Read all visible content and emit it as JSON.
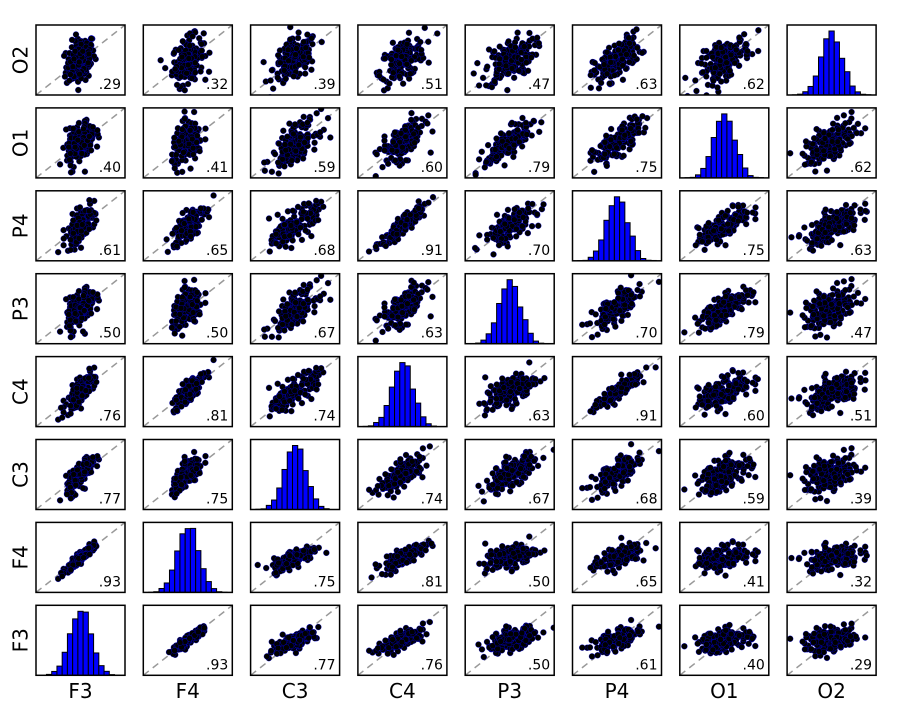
{
  "chart_data": {
    "type": "scatter",
    "subtype": "scatter-matrix",
    "variables": [
      "F3",
      "F4",
      "C3",
      "C4",
      "P3",
      "P4",
      "O1",
      "O2"
    ],
    "row_order_top_to_bottom": [
      "O2",
      "O1",
      "P4",
      "P3",
      "C4",
      "C3",
      "F4",
      "F3"
    ],
    "column_order_left_to_right": [
      "F3",
      "F4",
      "C3",
      "C4",
      "P3",
      "P4",
      "O1",
      "O2"
    ],
    "correlation_labels": [
      [
        null,
        ".93",
        ".77",
        ".76",
        ".50",
        ".61",
        ".40",
        ".29"
      ],
      [
        ".93",
        null,
        ".75",
        ".81",
        ".50",
        ".65",
        ".41",
        ".32"
      ],
      [
        ".77",
        ".75",
        null,
        ".74",
        ".67",
        ".68",
        ".59",
        ".39"
      ],
      [
        ".76",
        ".81",
        ".74",
        null,
        ".63",
        ".91",
        ".60",
        ".51"
      ],
      [
        ".50",
        ".50",
        ".67",
        ".63",
        null,
        ".70",
        ".79",
        ".47"
      ],
      [
        ".61",
        ".65",
        ".68",
        ".91",
        ".70",
        null,
        ".75",
        ".63"
      ],
      [
        ".40",
        ".41",
        ".59",
        ".60",
        ".79",
        ".75",
        null,
        ".62"
      ],
      [
        ".29",
        ".32",
        ".39",
        ".51",
        ".47",
        ".63",
        ".62",
        null
      ]
    ],
    "diagonal": "histogram",
    "off_diagonal": "scatter with dashed identity line",
    "colors": {
      "points": "#000000",
      "point_edge": "#0000ff",
      "histogram": "#0000ff",
      "identity_line": "#999999"
    },
    "grid": false
  }
}
